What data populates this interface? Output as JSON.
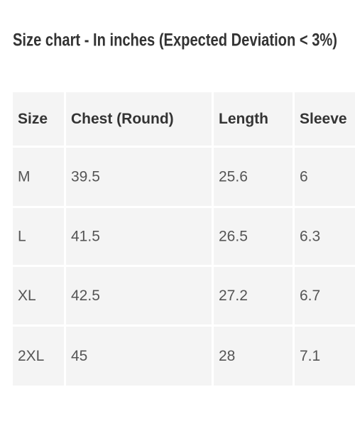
{
  "header": {
    "title": "Size chart - In inches (Expected Deviation < 3%)"
  },
  "table": {
    "columns": [
      "Size",
      "Chest (Round)",
      "Length",
      "Sleeve"
    ],
    "rows": [
      [
        "M",
        "39.5",
        "25.6",
        "6"
      ],
      [
        "L",
        "41.5",
        "26.5",
        "6.3"
      ],
      [
        "XL",
        "42.5",
        "27.2",
        "6.7"
      ],
      [
        "2XL",
        "45",
        "28",
        "7.1"
      ]
    ]
  }
}
